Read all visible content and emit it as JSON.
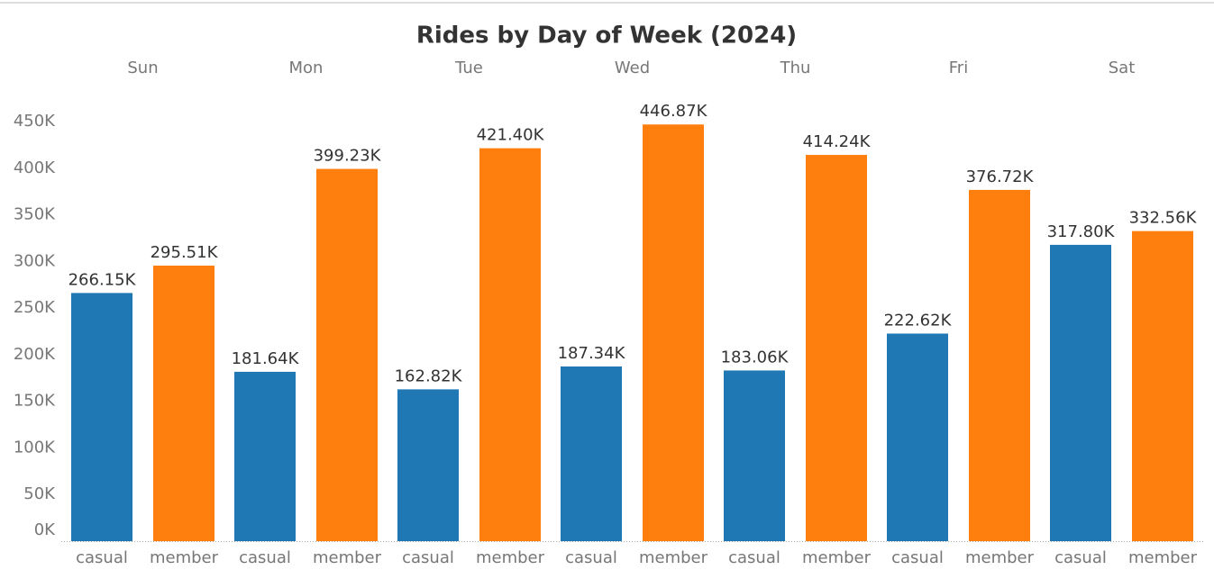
{
  "chart_data": {
    "type": "bar",
    "title": "Rides by Day of Week (2024)",
    "categories": [
      "Sun",
      "Mon",
      "Tue",
      "Wed",
      "Thu",
      "Fri",
      "Sat"
    ],
    "series": [
      {
        "name": "casual",
        "color": "#1f77b4",
        "values": [
          266150,
          181640,
          162820,
          187340,
          183060,
          222620,
          317800
        ],
        "value_labels": [
          "266.15K",
          "181.64K",
          "162.82K",
          "187.34K",
          "183.06K",
          "222.62K",
          "317.80K"
        ]
      },
      {
        "name": "member",
        "color": "#ff7f0e",
        "values": [
          295510,
          399230,
          421400,
          446870,
          414240,
          376720,
          332560
        ],
        "value_labels": [
          "295.51K",
          "399.23K",
          "421.40K",
          "446.87K",
          "414.24K",
          "376.72K",
          "332.56K"
        ]
      }
    ],
    "ylim": [
      0,
      450000
    ],
    "yticks": [
      {
        "value": 0,
        "label": "0K"
      },
      {
        "value": 50000,
        "label": "50K"
      },
      {
        "value": 100000,
        "label": "100K"
      },
      {
        "value": 150000,
        "label": "150K"
      },
      {
        "value": 200000,
        "label": "200K"
      },
      {
        "value": 250000,
        "label": "250K"
      },
      {
        "value": 300000,
        "label": "300K"
      },
      {
        "value": 350000,
        "label": "350K"
      },
      {
        "value": 400000,
        "label": "400K"
      },
      {
        "value": 450000,
        "label": "450K"
      }
    ],
    "grid": false
  }
}
